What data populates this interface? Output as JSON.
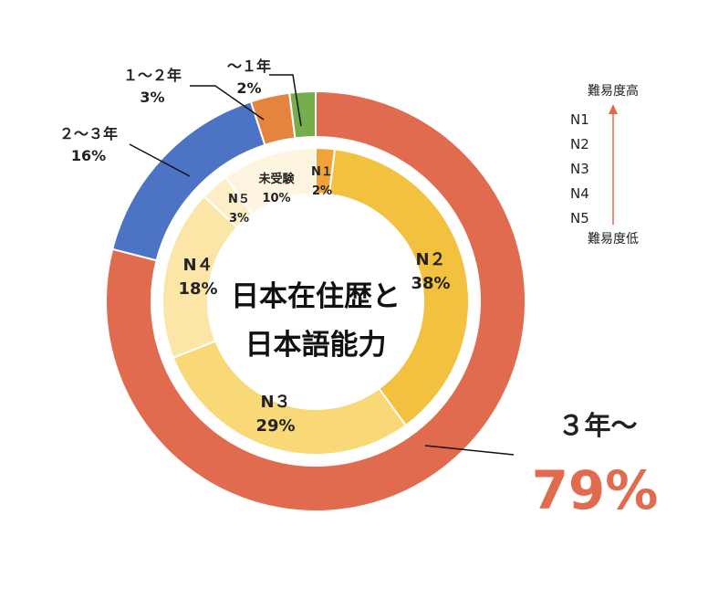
{
  "chart_data": {
    "type": "pie",
    "title_lines": [
      "日本在住歴と",
      "日本語能力"
    ],
    "outer_ring": {
      "slices": [
        {
          "label": "３年～",
          "value": 79,
          "pct_text": "79%",
          "color": "#E06B4F"
        },
        {
          "label": "２～３年",
          "value": 16,
          "pct_text": "16%",
          "color": "#4C73C4"
        },
        {
          "label": "１～２年",
          "value": 3,
          "pct_text": "3%",
          "color": "#E5843E"
        },
        {
          "label": "～１年",
          "value": 2,
          "pct_text": "2%",
          "color": "#76AE4E"
        }
      ]
    },
    "inner_ring": {
      "slices": [
        {
          "label": "N１",
          "value": 2,
          "pct_text": "2%",
          "color": "#F0A33A"
        },
        {
          "label": "N２",
          "value": 38,
          "pct_text": "38%",
          "color": "#F3C140"
        },
        {
          "label": "N３",
          "value": 29,
          "pct_text": "29%",
          "color": "#F8D877"
        },
        {
          "label": "N４",
          "value": 18,
          "pct_text": "18%",
          "color": "#FBE6A8"
        },
        {
          "label": "N５",
          "value": 3,
          "pct_text": "3%",
          "color": "#FCEFC8"
        },
        {
          "label": "未受験",
          "value": 10,
          "pct_text": "10%",
          "color": "#FDF5DF"
        }
      ]
    },
    "highlight": {
      "label": "３年～",
      "pct_text": "79%",
      "color": "#E06B4F"
    },
    "legend": {
      "top_label": "難易度高",
      "items": [
        "N1",
        "N2",
        "N3",
        "N4",
        "N5"
      ],
      "bottom_label": "難易度低",
      "arrow_color": "#E06B4F"
    }
  }
}
